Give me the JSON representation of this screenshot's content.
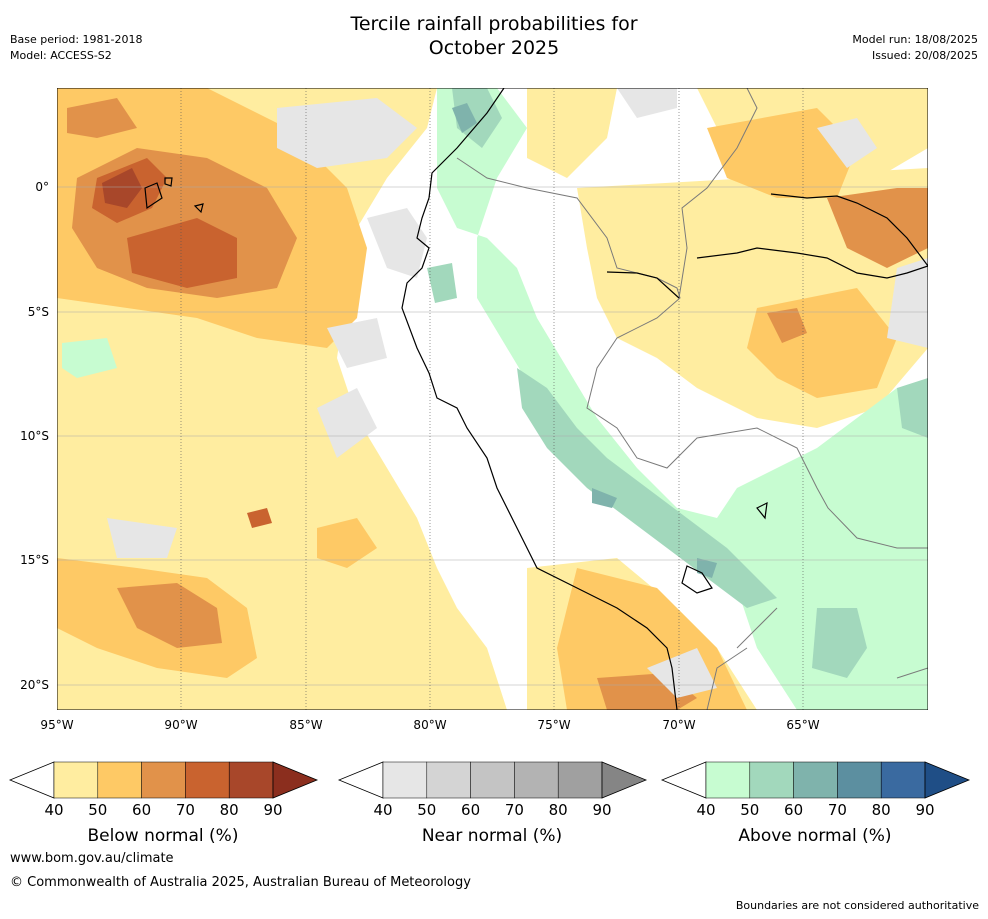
{
  "title_line1": "Tercile rainfall probabilities for",
  "title_line2": "October 2025",
  "base_period": "Base period: 1981-2018",
  "model": "Model: ACCESS-S2",
  "model_run": "Model run: 18/08/2025",
  "issued": "Issued: 20/08/2025",
  "x_ticks": [
    "95°W",
    "90°W",
    "85°W",
    "80°W",
    "75°W",
    "70°W",
    "65°W"
  ],
  "y_ticks": [
    "0°",
    "5°S",
    "10°S",
    "15°S",
    "20°S"
  ],
  "colorbars": [
    {
      "label": "Below normal (%)",
      "ticks": [
        "40",
        "50",
        "60",
        "70",
        "80",
        "90"
      ],
      "colors": [
        "#ffeda0",
        "#fec965",
        "#e1924a",
        "#c9632f",
        "#a8472a",
        "#8b2e1e"
      ]
    },
    {
      "label": "Near normal (%)",
      "ticks": [
        "40",
        "50",
        "60",
        "70",
        "80",
        "90"
      ],
      "colors": [
        "#e6e6e6",
        "#d4d4d4",
        "#c4c4c4",
        "#b3b3b3",
        "#a0a0a0",
        "#858585"
      ]
    },
    {
      "label": "Above normal (%)",
      "ticks": [
        "40",
        "50",
        "60",
        "70",
        "80",
        "90"
      ],
      "colors": [
        "#c7fcd1",
        "#a2d8bc",
        "#7fb3ac",
        "#5c8fa0",
        "#3a6aa0",
        "#1f4e86"
      ]
    }
  ],
  "footer_url": "www.bom.gov.au/climate",
  "copyright": "© Commonwealth of Australia 2025, Australian Bureau of Meteorology",
  "disclaimer": "Boundaries are not considered authoritative"
}
